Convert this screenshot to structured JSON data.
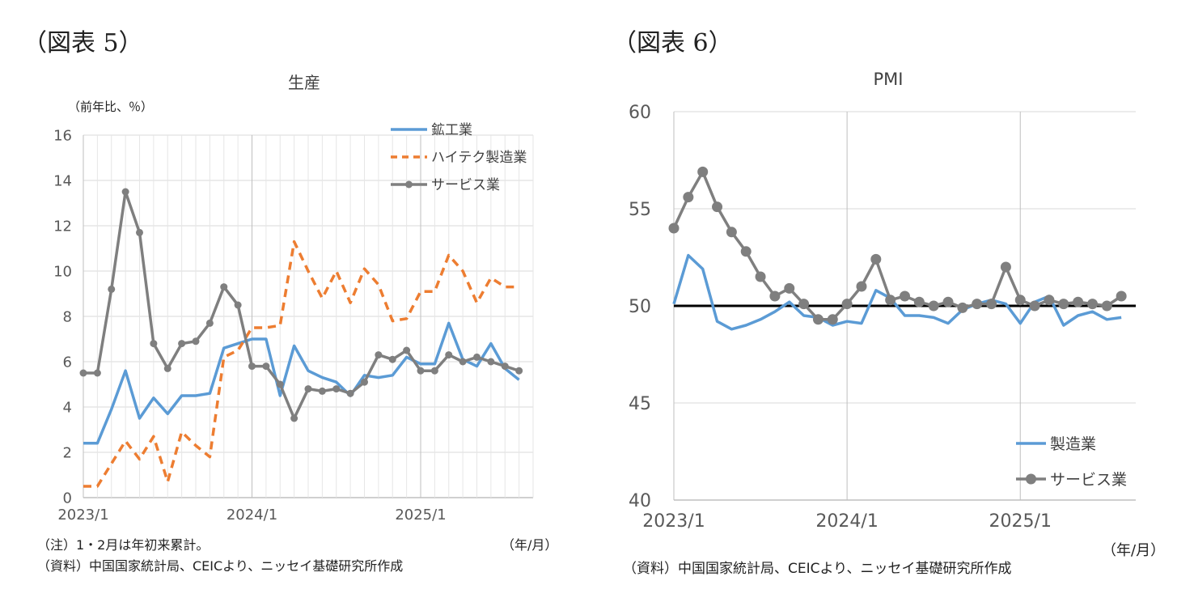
{
  "charts": [
    {
      "figure_label": "（図表 5）",
      "unit_label": "（前年比、％）",
      "xunit_label": "（年/月）",
      "note": "（注）1・2月は年初来累計。",
      "source": "（資料）中国国家統計局、CEICより、ニッセイ基礎研究所作成"
    },
    {
      "figure_label": "（図表 6）",
      "xunit_label": "（年/月）",
      "source": "（資料）中国国家統計局、CEICより、ニッセイ基礎研究所作成"
    }
  ],
  "chart_data": [
    {
      "type": "line",
      "title": "生産",
      "xlabel": "",
      "ylabel": "（前年比、％）",
      "ylim": [
        0,
        16
      ],
      "yticks": [
        0,
        2,
        4,
        6,
        8,
        10,
        12,
        14,
        16
      ],
      "xtick_labels": [
        "2023/1",
        "2024/1",
        "2025/1"
      ],
      "x": [
        "2023/1",
        "2023/2",
        "2023/3",
        "2023/4",
        "2023/5",
        "2023/6",
        "2023/7",
        "2023/8",
        "2023/9",
        "2023/10",
        "2023/11",
        "2023/12",
        "2024/1",
        "2024/2",
        "2024/3",
        "2024/4",
        "2024/5",
        "2024/6",
        "2024/7",
        "2024/8",
        "2024/9",
        "2024/10",
        "2024/11",
        "2024/12",
        "2025/1",
        "2025/2",
        "2025/3",
        "2025/4",
        "2025/5",
        "2025/6",
        "2025/7",
        "2025/8",
        "2025/9"
      ],
      "grid": true,
      "legend_position": "top-right",
      "series": [
        {
          "name": "鉱工業",
          "color": "#5B9BD5",
          "style": "solid",
          "values": [
            2.4,
            2.4,
            3.9,
            5.6,
            3.5,
            4.4,
            3.7,
            4.5,
            4.5,
            4.6,
            6.6,
            6.8,
            7.0,
            7.0,
            4.5,
            6.7,
            5.6,
            5.3,
            5.1,
            4.5,
            5.4,
            5.3,
            5.4,
            6.2,
            5.9,
            5.9,
            7.7,
            6.1,
            5.8,
            6.8,
            5.7,
            5.2,
            null
          ]
        },
        {
          "name": "ハイテク製造業",
          "color": "#ED7D31",
          "style": "dashed",
          "values": [
            0.5,
            0.5,
            1.5,
            2.5,
            1.7,
            2.7,
            0.7,
            2.9,
            2.3,
            1.8,
            6.2,
            6.5,
            7.5,
            7.5,
            7.6,
            11.3,
            10.0,
            8.8,
            10.0,
            8.6,
            10.1,
            9.4,
            7.8,
            7.9,
            9.1,
            9.1,
            10.7,
            10.0,
            8.6,
            9.7,
            9.3,
            9.3,
            null
          ]
        },
        {
          "name": "サービス業",
          "color": "#7F7F7F",
          "style": "solid-marker",
          "values": [
            5.5,
            5.5,
            9.2,
            13.5,
            11.7,
            6.8,
            5.7,
            6.8,
            6.9,
            7.7,
            9.3,
            8.5,
            5.8,
            5.8,
            5.0,
            3.5,
            4.8,
            4.7,
            4.8,
            4.6,
            5.1,
            6.3,
            6.1,
            6.5,
            5.6,
            5.6,
            6.3,
            6.0,
            6.2,
            6.0,
            5.8,
            5.6,
            null
          ]
        }
      ]
    },
    {
      "type": "line",
      "title": "PMI",
      "xlabel": "",
      "ylabel": "",
      "ylim": [
        40,
        60
      ],
      "yticks": [
        40,
        45,
        50,
        55,
        60
      ],
      "xtick_labels": [
        "2023/1",
        "2024/1",
        "2025/1"
      ],
      "x": [
        "2023/1",
        "2023/2",
        "2023/3",
        "2023/4",
        "2023/5",
        "2023/6",
        "2023/7",
        "2023/8",
        "2023/9",
        "2023/10",
        "2023/11",
        "2023/12",
        "2024/1",
        "2024/2",
        "2024/3",
        "2024/4",
        "2024/5",
        "2024/6",
        "2024/7",
        "2024/8",
        "2024/9",
        "2024/10",
        "2024/11",
        "2024/12",
        "2025/1",
        "2025/2",
        "2025/3",
        "2025/4",
        "2025/5",
        "2025/6",
        "2025/7",
        "2025/8",
        "2025/9"
      ],
      "grid": true,
      "legend_position": "bottom-right",
      "reference_line": 50,
      "series": [
        {
          "name": "製造業",
          "color": "#5B9BD5",
          "style": "solid",
          "values": [
            50.1,
            52.6,
            51.9,
            49.2,
            48.8,
            49.0,
            49.3,
            49.7,
            50.2,
            49.5,
            49.4,
            49.0,
            49.2,
            49.1,
            50.8,
            50.4,
            49.5,
            49.5,
            49.4,
            49.1,
            49.8,
            50.1,
            50.3,
            50.1,
            49.1,
            50.2,
            50.5,
            49.0,
            49.5,
            49.7,
            49.3,
            49.4,
            null
          ]
        },
        {
          "name": "サービス業",
          "color": "#7F7F7F",
          "style": "solid-marker",
          "values": [
            54.0,
            55.6,
            56.9,
            55.1,
            53.8,
            52.8,
            51.5,
            50.5,
            50.9,
            50.1,
            49.3,
            49.3,
            50.1,
            51.0,
            52.4,
            50.3,
            50.5,
            50.2,
            50.0,
            50.2,
            49.9,
            50.1,
            50.1,
            52.0,
            50.3,
            50.0,
            50.3,
            50.1,
            50.2,
            50.1,
            50.0,
            50.5,
            null
          ]
        }
      ]
    }
  ]
}
